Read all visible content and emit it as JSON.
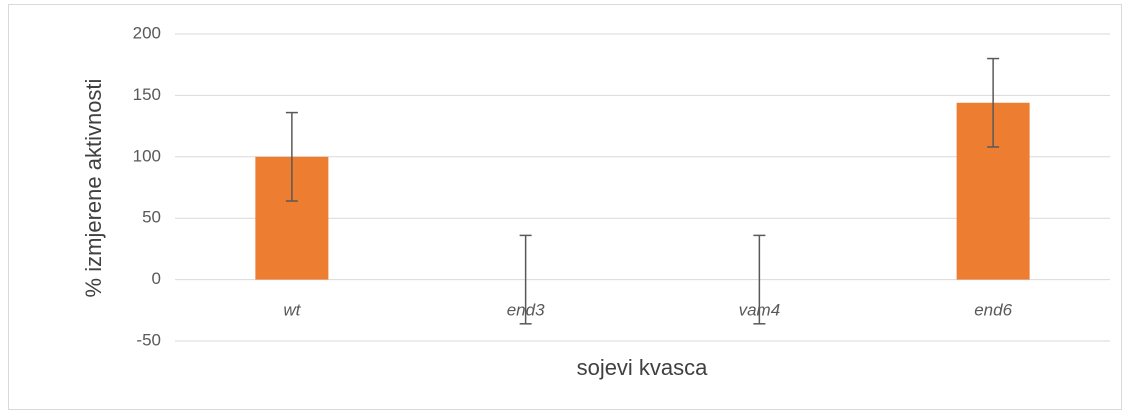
{
  "chart_data": {
    "type": "bar",
    "xlabel": "sojevi kvasca",
    "ylabel": "% izmjerene aktivnosti",
    "categories": [
      "wt",
      "end3",
      "vam4",
      "end6"
    ],
    "values": [
      100,
      0,
      0,
      144
    ],
    "errors": [
      36,
      36,
      36,
      36
    ],
    "color": "#ed7d31",
    "ylim": [
      -50,
      200
    ],
    "yticks": [
      -50,
      0,
      50,
      100,
      150,
      200
    ],
    "grid": true
  }
}
